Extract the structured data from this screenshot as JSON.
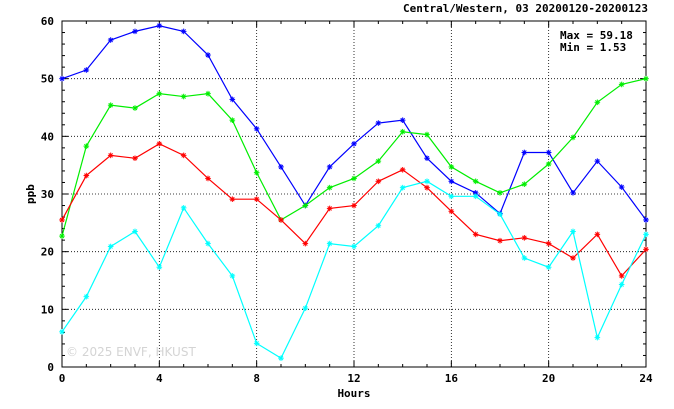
{
  "chart_data": {
    "type": "line",
    "title": "Central/Western, 03 20200120-20200123",
    "xlabel": "Hours",
    "ylabel": "ppb",
    "xlim": [
      0,
      24
    ],
    "ylim": [
      0,
      60
    ],
    "x_ticks": [
      "0",
      "4",
      "8",
      "12",
      "16",
      "20",
      "24"
    ],
    "y_ticks": [
      "0",
      "10",
      "20",
      "30",
      "40",
      "50",
      "60"
    ],
    "grid": true,
    "stats": {
      "max_label": "Max = 59.18",
      "min_label": "Min =  1.53"
    },
    "watermark": "© 2025  ENVF, HKUST",
    "x": [
      0,
      1,
      2,
      3,
      4,
      5,
      6,
      7,
      8,
      9,
      10,
      11,
      12,
      13,
      14,
      15,
      16,
      17,
      18,
      19,
      20,
      21,
      22,
      23,
      24
    ],
    "series": [
      {
        "color": "#0000ff",
        "values": [
          50.0,
          51.5,
          56.7,
          58.2,
          59.18,
          58.2,
          54.1,
          46.4,
          41.3,
          34.7,
          28.0,
          34.7,
          38.7,
          42.3,
          42.8,
          36.2,
          32.2,
          30.2,
          26.6,
          37.2,
          37.2,
          30.2,
          35.7,
          31.2,
          25.5
        ]
      },
      {
        "color": "#00ee00",
        "values": [
          22.7,
          38.3,
          45.4,
          44.9,
          47.4,
          46.9,
          47.4,
          42.8,
          33.7,
          25.5,
          28.0,
          31.1,
          32.7,
          35.7,
          40.8,
          40.3,
          34.7,
          32.2,
          30.2,
          31.7,
          35.2,
          39.8,
          45.9,
          49.0,
          50.0
        ]
      },
      {
        "color": "#ff0000",
        "values": [
          25.5,
          33.2,
          36.7,
          36.2,
          38.7,
          36.7,
          32.7,
          29.1,
          29.1,
          25.5,
          21.4,
          27.5,
          28.0,
          32.2,
          34.2,
          31.1,
          27.0,
          23.0,
          21.9,
          22.4,
          21.4,
          18.9,
          23.0,
          15.8,
          20.4
        ]
      },
      {
        "color": "#00ffff",
        "values": [
          6.1,
          12.2,
          20.9,
          23.5,
          17.3,
          27.6,
          21.4,
          15.8,
          4.1,
          1.53,
          10.2,
          21.4,
          20.9,
          24.5,
          31.1,
          32.2,
          29.6,
          29.6,
          26.5,
          18.9,
          17.3,
          23.5,
          5.1,
          14.3,
          23.0
        ]
      }
    ]
  }
}
